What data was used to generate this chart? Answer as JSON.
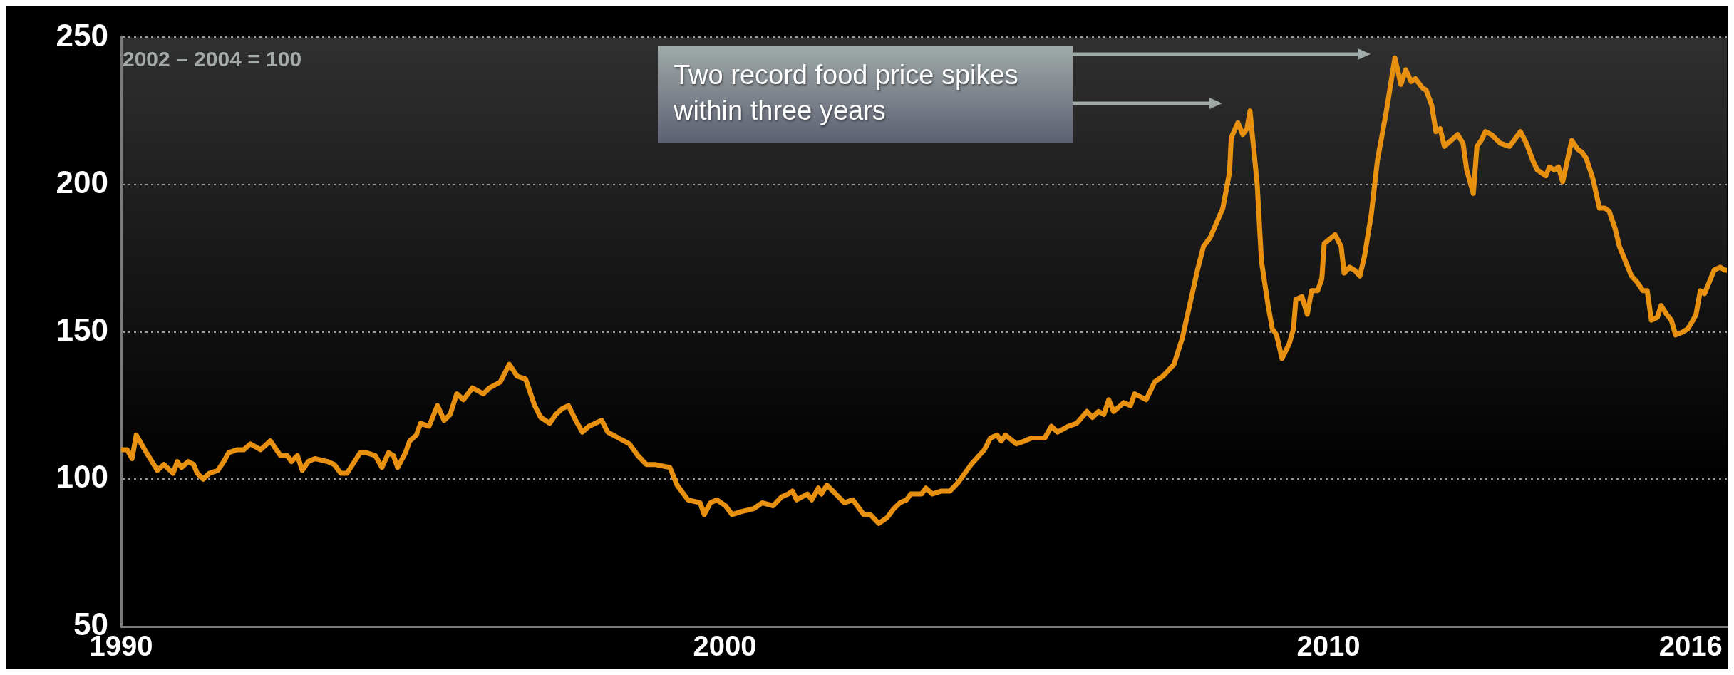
{
  "chart_data": {
    "type": "line",
    "annotations": [
      "2002 – 2004 = 100",
      "Two record food price spikes within three years"
    ],
    "xlim": [
      1990,
      2016.6
    ],
    "xticks": [
      1990,
      2000,
      2010,
      2016
    ],
    "ylim": [
      50,
      250
    ],
    "yticks": [
      50,
      100,
      150,
      200,
      250
    ],
    "grid": "y",
    "legend": false,
    "marker": "none",
    "line_style": "solid",
    "series": [
      {
        "color": "#e8900f",
        "x": [
          1990.0,
          1990.1,
          1990.18,
          1990.25,
          1990.39,
          1990.6,
          1990.71,
          1990.86,
          1990.93,
          1991.0,
          1991.11,
          1991.2,
          1991.26,
          1991.36,
          1991.46,
          1991.6,
          1991.7,
          1991.78,
          1991.92,
          1992.03,
          1992.14,
          1992.31,
          1992.47,
          1992.64,
          1992.75,
          1992.82,
          1992.92,
          1993.0,
          1993.1,
          1993.21,
          1993.42,
          1993.53,
          1993.64,
          1993.74,
          1993.96,
          1994.06,
          1994.21,
          1994.32,
          1994.43,
          1994.51,
          1994.58,
          1994.71,
          1994.78,
          1994.89,
          1994.96,
          1995.1,
          1995.24,
          1995.35,
          1995.45,
          1995.56,
          1995.67,
          1995.82,
          1996.0,
          1996.1,
          1996.28,
          1996.43,
          1996.56,
          1996.7,
          1996.85,
          1996.95,
          1997.1,
          1997.2,
          1997.31,
          1997.41,
          1997.53,
          1997.64,
          1997.75,
          1997.96,
          1998.06,
          1998.24,
          1998.42,
          1998.56,
          1998.7,
          1998.84,
          1999.09,
          1999.21,
          1999.39,
          1999.59,
          1999.66,
          1999.76,
          1999.87,
          2000.01,
          2000.12,
          2000.27,
          2000.48,
          2000.62,
          2000.8,
          2000.94,
          2001.05,
          2001.12,
          2001.19,
          2001.37,
          2001.44,
          2001.55,
          2001.6,
          2001.69,
          2001.79,
          2001.98,
          2002.12,
          2002.3,
          2002.41,
          2002.55,
          2002.69,
          2002.8,
          2002.9,
          2003.01,
          2003.08,
          2003.26,
          2003.33,
          2003.44,
          2003.59,
          2003.73,
          2003.87,
          2004.08,
          2004.3,
          2004.4,
          2004.51,
          2004.58,
          2004.65,
          2004.83,
          2004.97,
          2005.08,
          2005.3,
          2005.41,
          2005.51,
          2005.69,
          2005.83,
          2006.0,
          2006.09,
          2006.19,
          2006.28,
          2006.36,
          2006.44,
          2006.61,
          2006.72,
          2006.79,
          2006.98,
          2007.12,
          2007.26,
          2007.44,
          2007.58,
          2007.83,
          2007.93,
          2008.04,
          2008.25,
          2008.36,
          2008.39,
          2008.5,
          2008.58,
          2008.65,
          2008.7,
          2008.82,
          2008.89,
          2009.0,
          2009.07,
          2009.14,
          2009.23,
          2009.35,
          2009.42,
          2009.46,
          2009.56,
          2009.65,
          2009.72,
          2009.82,
          2009.89,
          2009.93,
          2010.11,
          2010.21,
          2010.26,
          2010.35,
          2010.43,
          2010.52,
          2010.6,
          2010.71,
          2010.81,
          2010.96,
          2011.1,
          2011.2,
          2011.28,
          2011.37,
          2011.44,
          2011.55,
          2011.62,
          2011.71,
          2011.78,
          2011.85,
          2011.92,
          2012.03,
          2012.14,
          2012.23,
          2012.29,
          2012.4,
          2012.46,
          2012.53,
          2012.6,
          2012.7,
          2012.85,
          2013.0,
          2013.18,
          2013.28,
          2013.39,
          2013.46,
          2013.6,
          2013.66,
          2013.74,
          2013.81,
          2013.88,
          2014.03,
          2014.13,
          2014.2,
          2014.27,
          2014.38,
          2014.49,
          2014.58,
          2014.65,
          2014.75,
          2014.82,
          2014.9,
          2015.02,
          2015.11,
          2015.21,
          2015.28,
          2015.35,
          2015.45,
          2015.51,
          2015.6,
          2015.68,
          2015.75,
          2015.87,
          2015.95,
          2016.04,
          2016.09,
          2016.16,
          2016.23,
          2016.39,
          2016.49,
          2016.56,
          2016.6
        ],
        "values": [
          110,
          110,
          107,
          115,
          110,
          103,
          105,
          102,
          106,
          104,
          106,
          105,
          102,
          100,
          102,
          103,
          106,
          109,
          110,
          110,
          112,
          110,
          113,
          108,
          108,
          106,
          108,
          103,
          106,
          107,
          106,
          105,
          102,
          102,
          109,
          109,
          108,
          104,
          109,
          108,
          104,
          109,
          113,
          115,
          119,
          118,
          125,
          120,
          122,
          129,
          127,
          131,
          129,
          131,
          133,
          139,
          135,
          134,
          125,
          121,
          119,
          122,
          124,
          125,
          120,
          116,
          118,
          120,
          116,
          114,
          112,
          108,
          105,
          105,
          104,
          98,
          93,
          92,
          88,
          92,
          93,
          91,
          88,
          89,
          90,
          92,
          91,
          94,
          95,
          96,
          93,
          95,
          93,
          97,
          95,
          98,
          96,
          92,
          93,
          88,
          88,
          85,
          87,
          90,
          92,
          93,
          95,
          95,
          97,
          95,
          96,
          96,
          99,
          105,
          110,
          114,
          115,
          113,
          115,
          112,
          113,
          114,
          114,
          118,
          116,
          118,
          119,
          123,
          121,
          123,
          122,
          127,
          123,
          126,
          125,
          129,
          127,
          133,
          135,
          139,
          148,
          171,
          179,
          182,
          192,
          204,
          216,
          221,
          217,
          219,
          225,
          200,
          174,
          159,
          151,
          149,
          141,
          146,
          151,
          161,
          162,
          156,
          164,
          164,
          168,
          180,
          183,
          179,
          170,
          172,
          171,
          169,
          176,
          190,
          208,
          225,
          243,
          234,
          239,
          235,
          236,
          233,
          232,
          227,
          218,
          219,
          213,
          215,
          217,
          214,
          205,
          197,
          213,
          215,
          218,
          217,
          214,
          213,
          218,
          214,
          208,
          205,
          203,
          206,
          205,
          206,
          201,
          215,
          212,
          211,
          209,
          202,
          192,
          192,
          191,
          185,
          179,
          175,
          169,
          167,
          164,
          164,
          154,
          155,
          159,
          156,
          154,
          149,
          150,
          151,
          154,
          156,
          164,
          163,
          171,
          172,
          171,
          171
        ]
      }
    ]
  }
}
